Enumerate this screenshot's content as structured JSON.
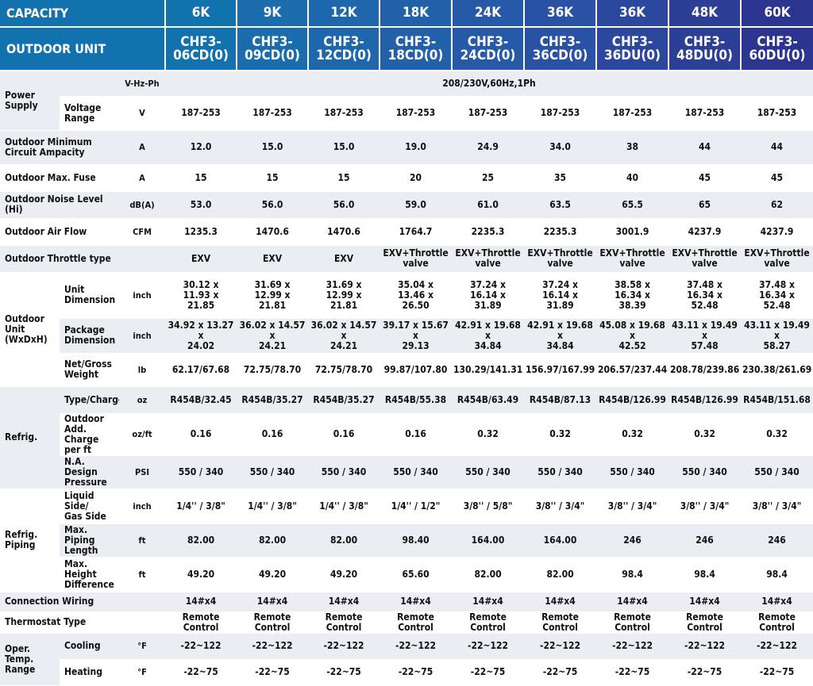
{
  "header": {
    "capacity_label": "CAPACITY",
    "outdoor_unit_label": "OUTDOOR UNIT",
    "columns": [
      {
        "capacity": "6K",
        "model": "CHF3-\n06CD(0)"
      },
      {
        "capacity": "9K",
        "model": "CHF3-\n09CD(0)"
      },
      {
        "capacity": "12K",
        "model": "CHF3-\n12CD(0)"
      },
      {
        "capacity": "18K",
        "model": "CHF3-\n18CD(0)"
      },
      {
        "capacity": "24K",
        "model": "CHF3-\n24CD(0)"
      },
      {
        "capacity": "36K",
        "model": "CHF3-\n36CD(0)"
      },
      {
        "capacity": "36K",
        "model": "CHF3-\n36DU(0)"
      },
      {
        "capacity": "48K",
        "model": "CHF3-\n48DU(0)"
      },
      {
        "capacity": "60K",
        "model": "CHF3-\n60DU(0)"
      }
    ],
    "colors": [
      "#1272ad",
      "#1a6cad",
      "#1e67ac",
      "#2261aa",
      "#265aa8",
      "#2a52a4",
      "#2b489e",
      "#2b3f97",
      "#2b358f"
    ]
  },
  "groups": {
    "power_supply": "Power\nSupply",
    "outdoor_unit": "Outdoor\nUnit\n(WxDxH)",
    "refrig": "Refrig.",
    "refrig_piping": "Refrig.\nPiping",
    "oper_temp": "Oper.\nTemp.\nRange"
  },
  "rows": {
    "vhzph": {
      "sub": "",
      "unit": "V-Hz-Ph",
      "span_value": "208/230V,60Hz,1Ph"
    },
    "voltage": {
      "sub": "Voltage\nRange",
      "unit": "V",
      "values": [
        "187-253",
        "187-253",
        "187-253",
        "187-253",
        "187-253",
        "187-253",
        "187-253",
        "187-253",
        "187-253"
      ]
    },
    "mca": {
      "label": "Outdoor Minimum\nCircuit Ampacity",
      "unit": "A",
      "values": [
        "12.0",
        "15.0",
        "15.0",
        "19.0",
        "24.9",
        "34.0",
        "38",
        "44",
        "44"
      ]
    },
    "fuse": {
      "label": "Outdoor Max. Fuse",
      "unit": "A",
      "values": [
        "15",
        "15",
        "15",
        "20",
        "25",
        "35",
        "40",
        "45",
        "45"
      ]
    },
    "noise": {
      "label": "Outdoor Noise Level (Hi)",
      "unit": "dB(A)",
      "values": [
        "53.0",
        "56.0",
        "56.0",
        "59.0",
        "61.0",
        "63.5",
        "65.5",
        "65",
        "62"
      ]
    },
    "airflow": {
      "label": "Outdoor Air Flow",
      "unit": "CFM",
      "values": [
        "1235.3",
        "1470.6",
        "1470.6",
        "1764.7",
        "2235.3",
        "2235.3",
        "3001.9",
        "4237.9",
        "4237.9"
      ]
    },
    "throttle": {
      "label": "Outdoor Throttle type",
      "unit": "",
      "values": [
        "EXV",
        "EXV",
        "EXV",
        "EXV+Throttle\nvalve",
        "EXV+Throttle\nvalve",
        "EXV+Throttle\nvalve",
        "EXV+Throttle\nvalve",
        "EXV+Throttle\nvalve",
        "EXV+Throttle valve"
      ]
    },
    "unit_dim": {
      "sub": "Unit\nDimension",
      "unit": "inch",
      "values": [
        "30.12 x\n11.93 x\n21.85",
        "31.69 x\n12.99 x\n21.81",
        "31.69 x\n12.99 x\n21.81",
        "35.04 x\n13.46 x\n26.50",
        "37.24 x\n16.14 x\n31.89",
        "37.24 x\n16.14 x\n31.89",
        "38.58 x\n16.34 x\n38.39",
        "37.48 x\n16.34 x\n52.48",
        "37.48 x\n16.34 x\n52.48"
      ]
    },
    "pkg_dim": {
      "sub": "Package\nDimension",
      "unit": "inch",
      "values": [
        "34.92 x 13.27 x\n24.02",
        "36.02 x 14.57 x\n24.21",
        "36.02 x 14.57 x\n24.21",
        "39.17 x 15.67 x\n29.13",
        "42.91 x 19.68 x\n34.84",
        "42.91 x 19.68 x\n34.84",
        "45.08 x 19.68 x\n42.52",
        "43.11 x 19.49 x\n57.48",
        "43.11 x 19.49 x\n58.27"
      ]
    },
    "weight": {
      "sub": "Net/Gross\nWeight",
      "unit": "lb",
      "values": [
        "62.17/67.68",
        "72.75/78.70",
        "72.75/78.70",
        "99.87/107.80",
        "130.29/141.31",
        "156.97/167.99",
        "206.57/237.44",
        "208.78/239.86",
        "230.38/261.69"
      ]
    },
    "charge": {
      "sub": "Type/Charge",
      "unit": "oz",
      "values": [
        "R454B/32.45",
        "R454B/35.27",
        "R454B/35.27",
        "R454B/55.38",
        "R454B/63.49",
        "R454B/87.13",
        "R454B/126.99",
        "R454B/126.99",
        "R454B/151.68"
      ]
    },
    "add_charge": {
      "sub": "Outdoor\nAdd. Charge\nper ft",
      "unit": "oz/ft",
      "values": [
        "0.16",
        "0.16",
        "0.16",
        "0.16",
        "0.32",
        "0.32",
        "0.32",
        "0.32",
        "0.32"
      ]
    },
    "pressure": {
      "sub": "N.A. Design\nPressure",
      "unit": "PSI",
      "values": [
        "550 / 340",
        "550 / 340",
        "550 / 340",
        "550 / 340",
        "550 / 340",
        "550 / 340",
        "550 / 340",
        "550 / 340",
        "550 / 340"
      ]
    },
    "liquid_gas": {
      "sub": "Liquid Side/\nGas Side",
      "unit": "inch",
      "values": [
        "1/4'' / 3/8\"",
        "1/4'' / 3/8\"",
        "1/4'' / 3/8\"",
        "1/4'' / 1/2\"",
        "3/8'' / 5/8\"",
        "3/8'' / 3/4\"",
        "3/8'' / 3/4\"",
        "3/8'' / 3/4\"",
        "3/8'' / 3/4\""
      ]
    },
    "pipe_len": {
      "sub": "Max. Piping\nLength",
      "unit": "ft",
      "values": [
        "82.00",
        "82.00",
        "82.00",
        "98.40",
        "164.00",
        "164.00",
        "246",
        "246",
        "246"
      ]
    },
    "height_diff": {
      "sub": "Max.\nHeight\nDifference",
      "unit": "ft",
      "values": [
        "49.20",
        "49.20",
        "49.20",
        "65.60",
        "82.00",
        "82.00",
        "98.4",
        "98.4",
        "98.4"
      ]
    },
    "wiring": {
      "label": "Connection Wiring",
      "unit": "",
      "values": [
        "14#x4",
        "14#x4",
        "14#x4",
        "14#x4",
        "14#x4",
        "14#x4",
        "14#x4",
        "14#x4",
        "14#x4"
      ]
    },
    "thermostat": {
      "label": "Thermostat Type",
      "unit": "",
      "values": [
        "Remote Control",
        "Remote Control",
        "Remote Control",
        "Remote Control",
        "Remote Control",
        "Remote Control",
        "Remote Control",
        "Remote Control",
        "Remote Control"
      ]
    },
    "cooling": {
      "sub": "Cooling",
      "unit": "°F",
      "values": [
        "-22~122",
        "-22~122",
        "-22~122",
        "-22~122",
        "-22~122",
        "-22~122",
        "-22~122",
        "-22~122",
        "-22~122"
      ]
    },
    "heating": {
      "sub": "Heating",
      "unit": "°F",
      "values": [
        "-22~75",
        "-22~75",
        "-22~75",
        "-22~75",
        "-22~75",
        "-22~75",
        "-22~75",
        "-22~75",
        "-22~75"
      ]
    }
  }
}
